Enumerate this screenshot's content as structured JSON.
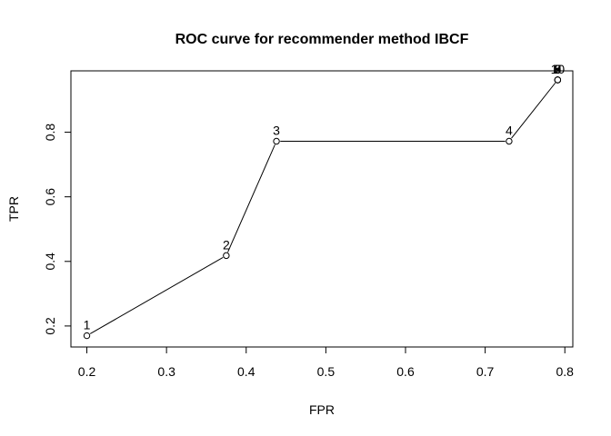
{
  "chart_data": {
    "type": "line",
    "title": "ROC curve for recommender method IBCF",
    "xlabel": "FPR",
    "ylabel": "TPR",
    "xlim": [
      0.18,
      0.81
    ],
    "ylim": [
      0.135,
      0.99
    ],
    "xticks": [
      0.2,
      0.3,
      0.4,
      0.5,
      0.6,
      0.7,
      0.8
    ],
    "xtick_labels": [
      "0.2",
      "0.3",
      "0.4",
      "0.5",
      "0.6",
      "0.7",
      "0.8"
    ],
    "yticks": [
      0.2,
      0.4,
      0.6,
      0.8
    ],
    "ytick_labels": [
      "0.2",
      "0.4",
      "0.6",
      "0.8"
    ],
    "grid": false,
    "series": [
      {
        "markers": "open-circle",
        "x": [
          0.2,
          0.375,
          0.438,
          0.73,
          0.791,
          0.791,
          0.791,
          0.791,
          0.791,
          0.791
        ],
        "y": [
          0.17,
          0.418,
          0.772,
          0.772,
          0.962,
          0.962,
          0.962,
          0.962,
          0.962,
          0.962
        ],
        "labels": [
          "1",
          "2",
          "3",
          "4",
          "5",
          "6",
          "7",
          "8",
          "9",
          "10"
        ]
      }
    ]
  }
}
